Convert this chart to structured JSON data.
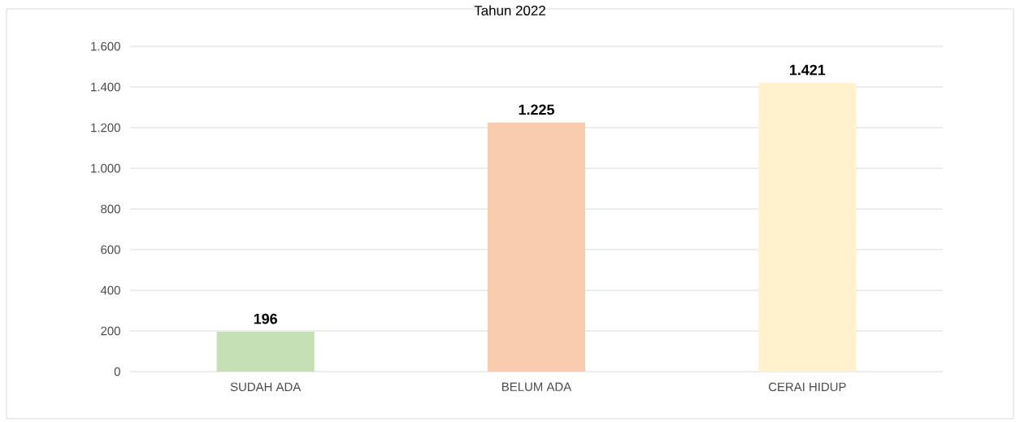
{
  "chart_data": {
    "type": "bar",
    "title": "Tahun 2022",
    "categories": [
      "SUDAH ADA",
      "BELUM ADA",
      "CERAI HIDUP"
    ],
    "values": [
      196,
      1225,
      1421
    ],
    "colors": [
      "#c5e0b4",
      "#f8cbad",
      "#fff2cc"
    ],
    "value_labels": [
      "196",
      "1.225",
      "1.421"
    ],
    "ylim": [
      0,
      1600
    ],
    "yticks": [
      0,
      200,
      400,
      600,
      800,
      {
        "value": 1000,
        "label": "1.000"
      },
      {
        "value": 1200,
        "label": "1.200"
      },
      {
        "value": 1400,
        "label": "1.400"
      },
      {
        "value": 1600,
        "label": "1.600"
      }
    ],
    "grid": "y"
  }
}
